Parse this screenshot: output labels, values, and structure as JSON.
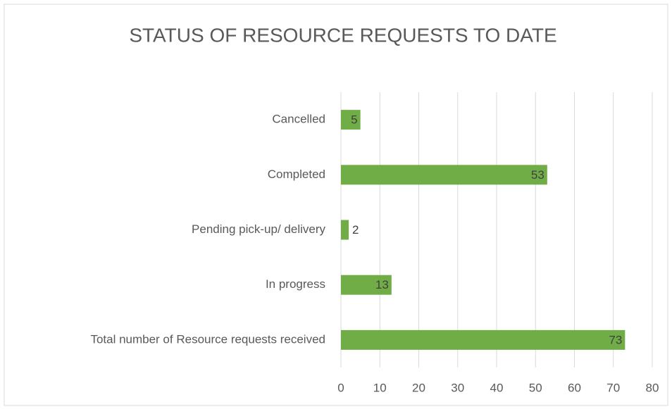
{
  "chart_data": {
    "type": "bar",
    "orientation": "horizontal",
    "title": "STATUS OF RESOURCE REQUESTS TO DATE",
    "categories": [
      "Cancelled",
      "Completed",
      "Pending pick-up/ delivery",
      "In progress",
      "Total number of Resource requests received"
    ],
    "values": [
      5,
      53,
      2,
      13,
      73
    ],
    "color": "#70ad47",
    "xlim": [
      0,
      80
    ],
    "xticks": [
      0,
      10,
      20,
      30,
      40,
      50,
      60,
      70,
      80
    ],
    "grid": true
  }
}
